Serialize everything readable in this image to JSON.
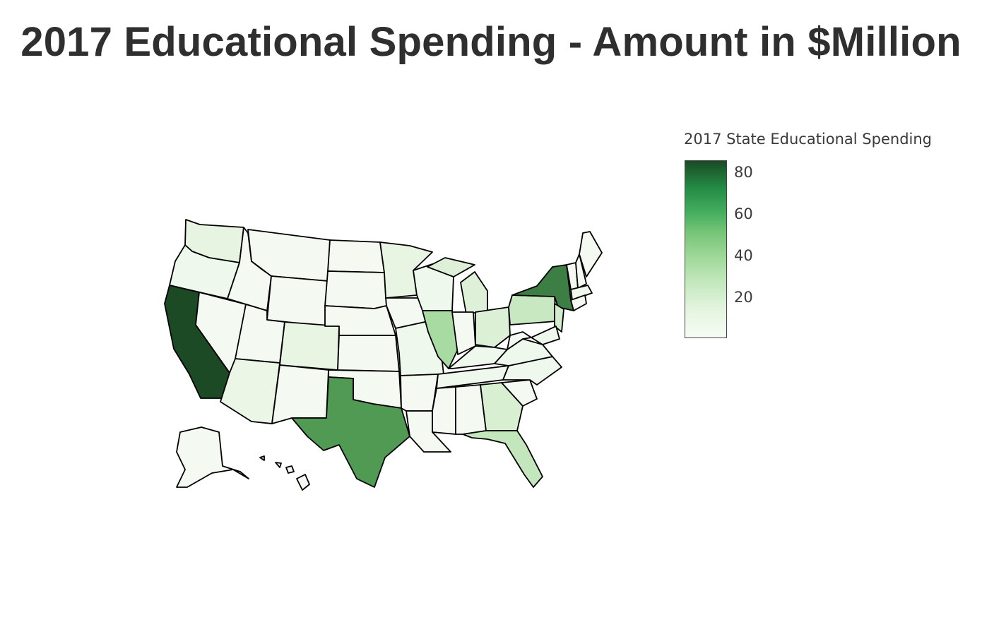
{
  "title": "2017 Educational Spending - Amount in $Million",
  "legend": {
    "title": "2017 State Educational Spending",
    "colorscale": [
      "#f7fcf5",
      "#e5f5e0",
      "#c7e9c0",
      "#a1d99b",
      "#74c476",
      "#41ab5d",
      "#238b45",
      "#1b4a25"
    ],
    "range": [
      1,
      86
    ],
    "ticks": [
      "20",
      "40",
      "60",
      "80"
    ]
  },
  "map": {
    "scope": "usa",
    "outline_color": "#000000",
    "highlighted_states": {
      "California": 86,
      "New York": 70,
      "Texas": 60,
      "Illinois": 33,
      "Florida": 30,
      "Pennsylvania": 28,
      "Ohio": 20,
      "Georgia": 17,
      "Michigan": 16,
      "New Jersey": 22,
      "Washington": 12,
      "Colorado": 9,
      "Arizona": 8,
      "Minnesota": 9
    }
  }
}
